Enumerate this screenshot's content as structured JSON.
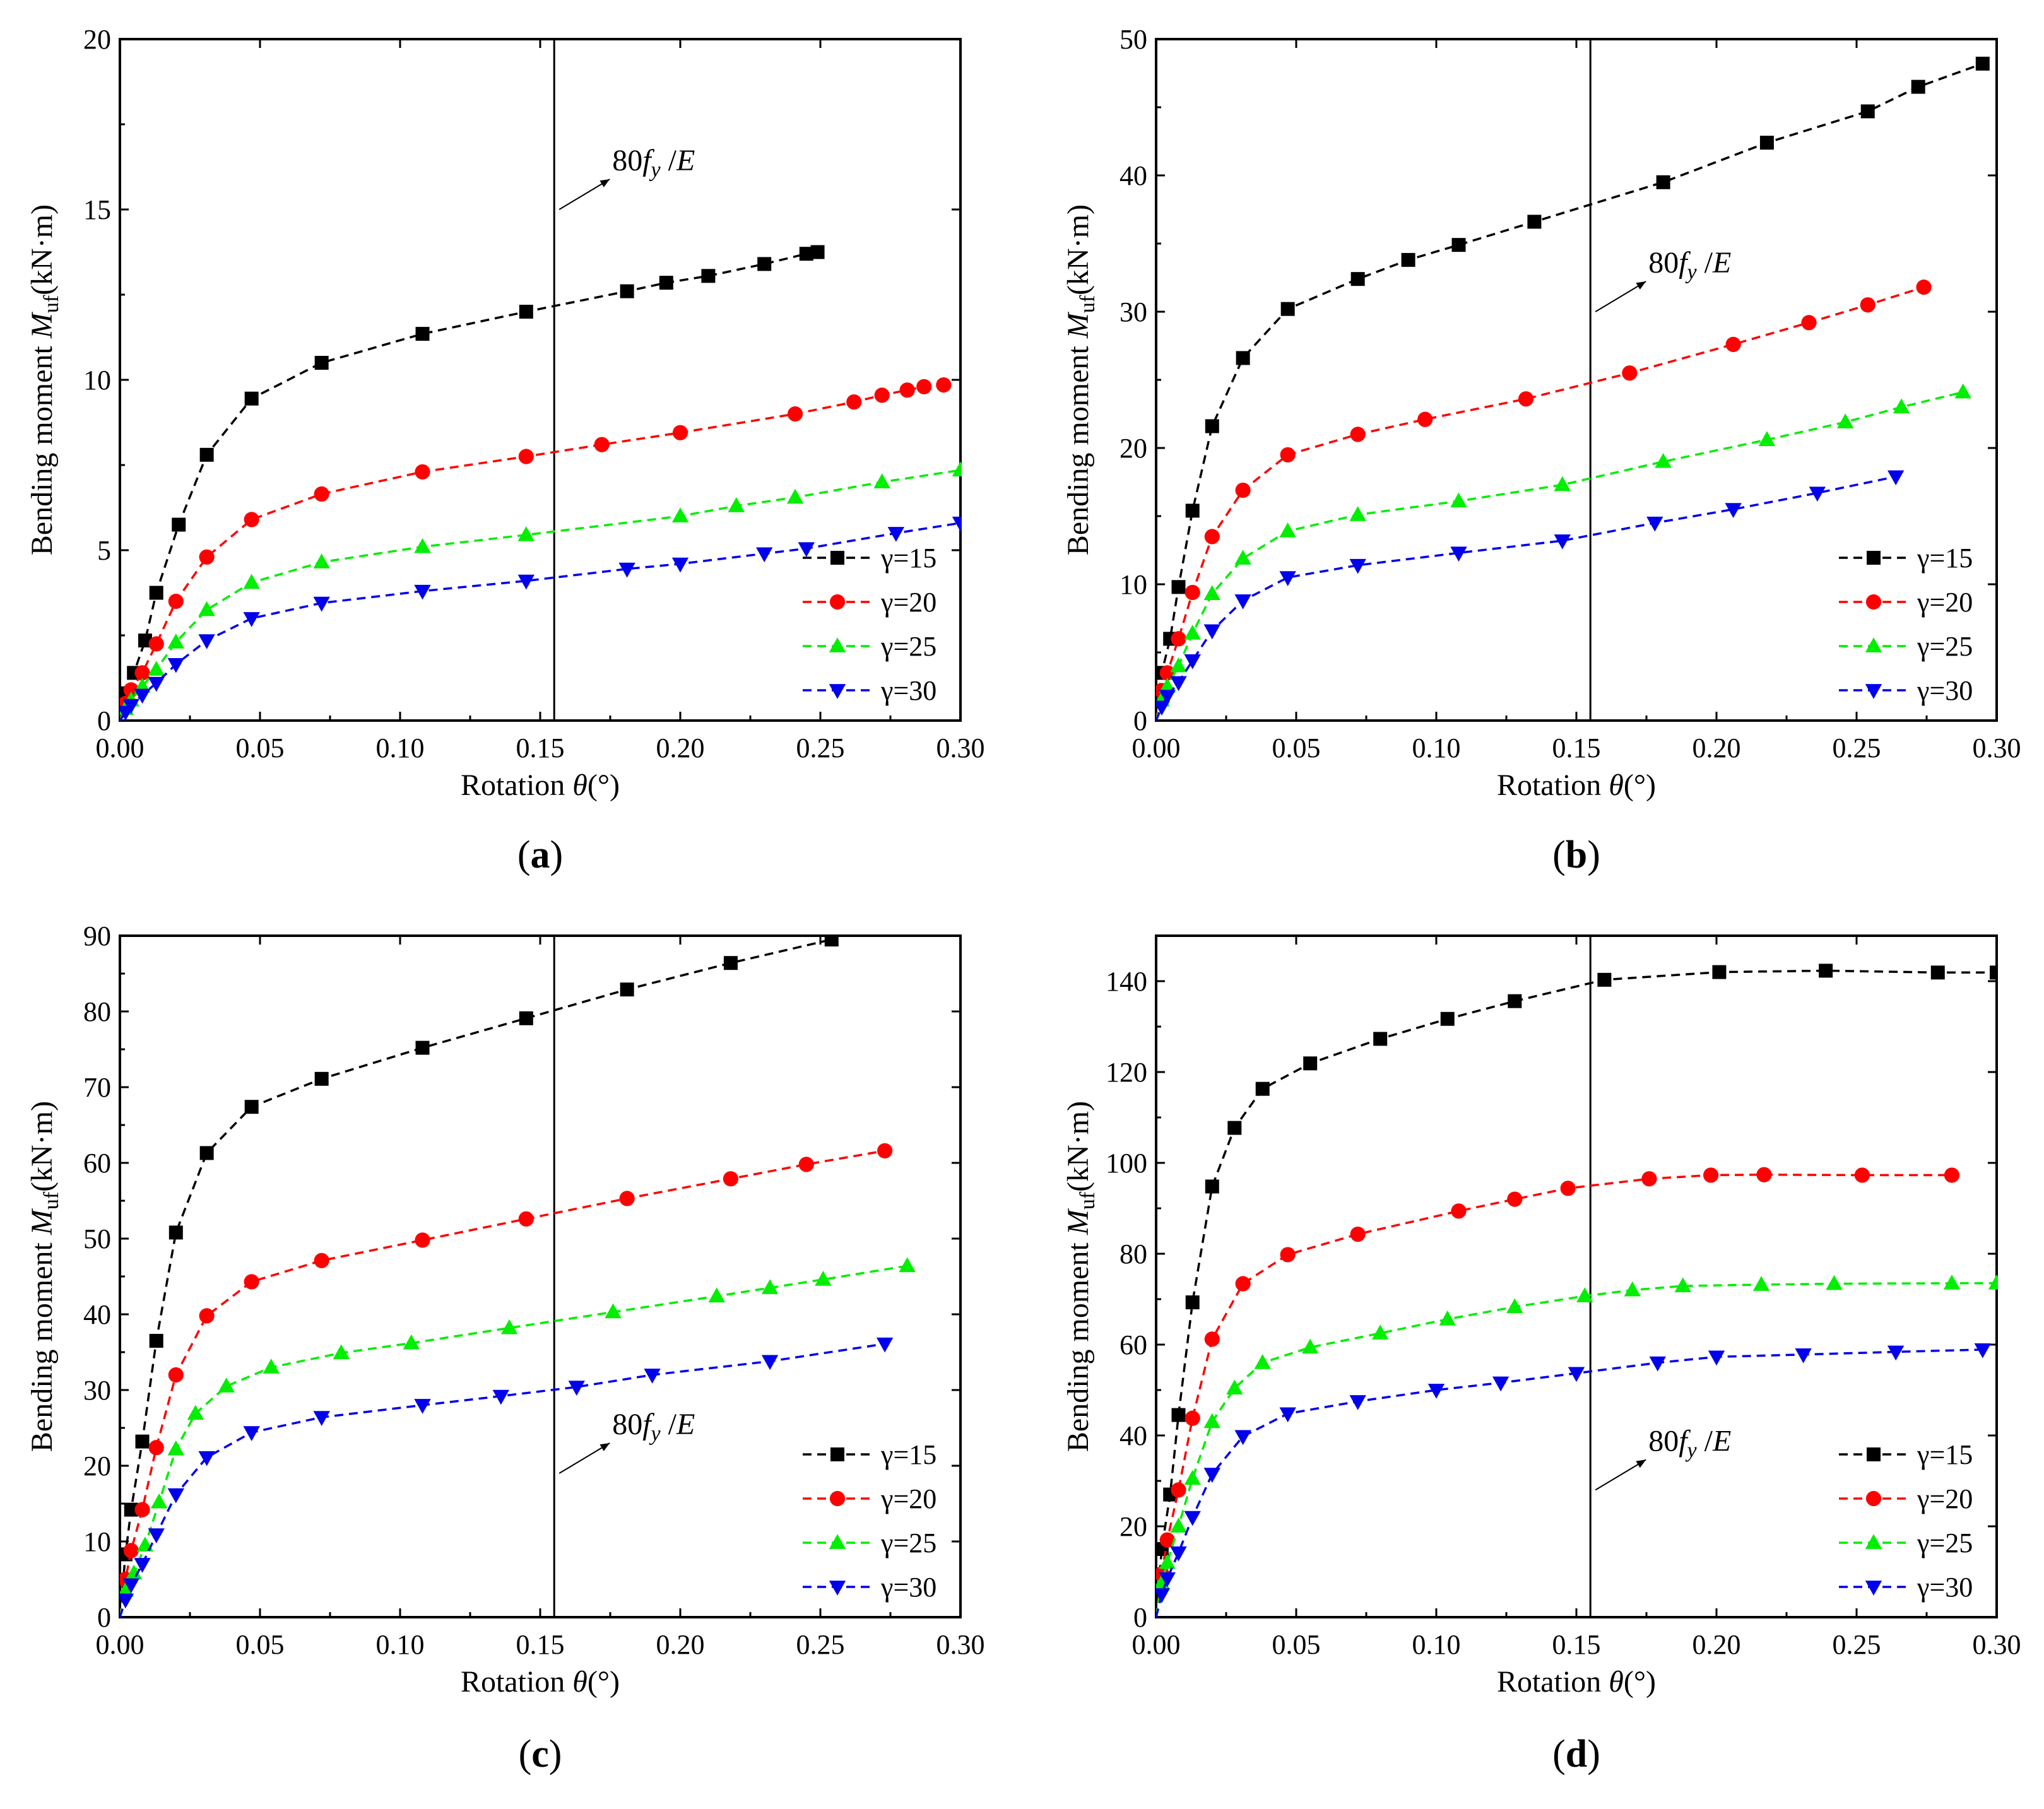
{
  "figure": {
    "panels": [
      {
        "label": "a",
        "ylim": [
          0,
          20
        ],
        "yticks": [
          0,
          5,
          10,
          15,
          20
        ],
        "ref_x": 0.155,
        "annotation_y": 15,
        "legend": [
          "γ=15",
          "γ=20",
          "γ=25",
          "γ=30"
        ]
      },
      {
        "label": "b",
        "ylim": [
          0,
          50
        ],
        "yticks": [
          0,
          10,
          20,
          30,
          40,
          50
        ],
        "ref_x": 0.155,
        "annotation_y": 30,
        "legend": [
          "γ=15",
          "γ=20",
          "γ=25",
          "γ=30"
        ]
      },
      {
        "label": "c",
        "ylim": [
          0,
          90
        ],
        "yticks": [
          0,
          10,
          20,
          30,
          40,
          50,
          60,
          70,
          80,
          90
        ],
        "ref_x": 0.155,
        "annotation_y": 19,
        "legend": [
          "γ=15",
          "γ=20",
          "γ=25",
          "γ=30"
        ]
      },
      {
        "label": "d",
        "ylim": [
          0,
          150
        ],
        "yticks": [
          0,
          20,
          40,
          60,
          80,
          100,
          120,
          140
        ],
        "ref_x": 0.155,
        "annotation_y": 28,
        "legend": [
          "γ=15",
          "γ=20",
          "γ=25",
          "γ=30"
        ]
      }
    ],
    "xticks": [
      "0.00",
      "0.05",
      "0.10",
      "0.15",
      "0.20",
      "0.25",
      "0.30"
    ],
    "xlabel": {
      "prefix": "Rotation ",
      "symbol": "θ",
      "suffix": "(°)"
    },
    "ylabel": {
      "prefix": "Bending moment ",
      "symbol": "M",
      "sub": "uf",
      "suffix": "(kN·m)"
    },
    "annotation": {
      "prefix": "80",
      "symbol": "f",
      "sub": "y",
      "sep": " /",
      "denom": "E"
    },
    "series_colors": [
      "#000000",
      "#ff0000",
      "#00ee00",
      "#0000ee"
    ],
    "markers": [
      "square",
      "circle",
      "triangle-up",
      "triangle-down"
    ]
  },
  "chart_data": [
    {
      "type": "line",
      "title": "(a)",
      "xlabel": "Rotation θ(°)",
      "ylabel": "Bending moment Muf(kN·m)",
      "xlim": [
        0,
        0.3
      ],
      "ylim": [
        0,
        20
      ],
      "reference_line_x": 0.155,
      "reference_label": "80fy /E",
      "series": [
        {
          "name": "γ=15",
          "x": [
            0,
            0.002,
            0.005,
            0.009,
            0.013,
            0.021,
            0.031,
            0.047,
            0.072,
            0.108,
            0.145,
            0.181,
            0.195,
            0.21,
            0.23,
            0.245,
            0.249
          ],
          "y": [
            0,
            0.8,
            1.4,
            2.35,
            3.75,
            5.75,
            7.8,
            9.45,
            10.5,
            11.35,
            12.0,
            12.6,
            12.85,
            13.05,
            13.4,
            13.7,
            13.75
          ]
        },
        {
          "name": "γ=20",
          "x": [
            0,
            0.002,
            0.004,
            0.008,
            0.013,
            0.02,
            0.031,
            0.047,
            0.072,
            0.108,
            0.145,
            0.172,
            0.2,
            0.241,
            0.262,
            0.272,
            0.281,
            0.287,
            0.294
          ],
          "y": [
            0,
            0.5,
            0.9,
            1.4,
            2.25,
            3.5,
            4.8,
            5.9,
            6.65,
            7.3,
            7.75,
            8.1,
            8.45,
            9.0,
            9.35,
            9.55,
            9.7,
            9.8,
            9.85
          ]
        },
        {
          "name": "γ=25",
          "x": [
            0,
            0.002,
            0.004,
            0.008,
            0.013,
            0.02,
            0.031,
            0.047,
            0.072,
            0.108,
            0.145,
            0.2,
            0.22,
            0.241,
            0.272,
            0.3
          ],
          "y": [
            0,
            0.35,
            0.6,
            1.0,
            1.5,
            2.3,
            3.25,
            4.05,
            4.65,
            5.1,
            5.45,
            6.0,
            6.3,
            6.55,
            7.0,
            7.35
          ]
        },
        {
          "name": "γ=30",
          "x": [
            0,
            0.002,
            0.004,
            0.008,
            0.013,
            0.02,
            0.031,
            0.047,
            0.072,
            0.108,
            0.145,
            0.181,
            0.2,
            0.23,
            0.245,
            0.277,
            0.3
          ],
          "y": [
            0,
            0.25,
            0.45,
            0.75,
            1.1,
            1.65,
            2.35,
            3.0,
            3.45,
            3.8,
            4.1,
            4.45,
            4.6,
            4.9,
            5.05,
            5.5,
            5.8
          ]
        }
      ]
    },
    {
      "type": "line",
      "title": "(b)",
      "xlabel": "Rotation θ(°)",
      "ylabel": "Bending moment Muf(kN·m)",
      "xlim": [
        0,
        0.3
      ],
      "ylim": [
        0,
        50
      ],
      "reference_line_x": 0.155,
      "reference_label": "80fy /E",
      "series": [
        {
          "name": "γ=15",
          "x": [
            0,
            0.002,
            0.005,
            0.008,
            0.013,
            0.02,
            0.031,
            0.047,
            0.072,
            0.09,
            0.108,
            0.135,
            0.181,
            0.218,
            0.254,
            0.272,
            0.295
          ],
          "y": [
            0,
            3.5,
            6.0,
            9.8,
            15.4,
            21.6,
            26.6,
            30.2,
            32.4,
            33.8,
            34.9,
            36.6,
            39.5,
            42.4,
            44.7,
            46.5,
            48.2
          ]
        },
        {
          "name": "γ=20",
          "x": [
            0,
            0.002,
            0.004,
            0.008,
            0.013,
            0.02,
            0.031,
            0.047,
            0.072,
            0.096,
            0.132,
            0.169,
            0.206,
            0.233,
            0.254,
            0.274
          ],
          "y": [
            0,
            2.2,
            3.5,
            6.0,
            9.4,
            13.5,
            16.9,
            19.5,
            21.0,
            22.1,
            23.6,
            25.5,
            27.6,
            29.2,
            30.5,
            31.8
          ]
        },
        {
          "name": "γ=25",
          "x": [
            0,
            0.002,
            0.004,
            0.008,
            0.013,
            0.02,
            0.031,
            0.047,
            0.072,
            0.108,
            0.145,
            0.181,
            0.218,
            0.246,
            0.266,
            0.288
          ],
          "y": [
            0,
            1.5,
            2.5,
            4.0,
            6.4,
            9.3,
            11.9,
            13.9,
            15.1,
            16.1,
            17.3,
            19.0,
            20.6,
            21.9,
            23.0,
            24.1
          ]
        },
        {
          "name": "γ=30",
          "x": [
            0,
            0.002,
            0.004,
            0.008,
            0.013,
            0.02,
            0.031,
            0.047,
            0.072,
            0.108,
            0.145,
            0.178,
            0.206,
            0.236,
            0.264
          ],
          "y": [
            0,
            1.0,
            1.8,
            2.8,
            4.4,
            6.6,
            8.8,
            10.5,
            11.4,
            12.3,
            13.2,
            14.5,
            15.5,
            16.7,
            17.9
          ]
        }
      ]
    },
    {
      "type": "line",
      "title": "(c)",
      "xlabel": "Rotation θ(°)",
      "ylabel": "Bending moment Muf(kN·m)",
      "xlim": [
        0,
        0.3
      ],
      "ylim": [
        0,
        90
      ],
      "reference_line_x": 0.155,
      "reference_label": "80fy /E",
      "series": [
        {
          "name": "γ=15",
          "x": [
            0,
            0.002,
            0.004,
            0.008,
            0.013,
            0.02,
            0.031,
            0.047,
            0.072,
            0.108,
            0.145,
            0.181,
            0.218,
            0.254
          ],
          "y": [
            0,
            8.3,
            14.2,
            23.2,
            36.5,
            50.8,
            61.3,
            67.4,
            71.1,
            75.2,
            79.1,
            82.9,
            86.4,
            89.5
          ]
        },
        {
          "name": "γ=20",
          "x": [
            0,
            0.002,
            0.004,
            0.008,
            0.013,
            0.02,
            0.031,
            0.047,
            0.072,
            0.108,
            0.145,
            0.181,
            0.218,
            0.245,
            0.273
          ],
          "y": [
            0,
            5.0,
            8.8,
            14.2,
            22.4,
            32.0,
            39.8,
            44.3,
            47.1,
            49.8,
            52.6,
            55.3,
            57.9,
            59.8,
            61.6
          ]
        },
        {
          "name": "γ=25",
          "x": [
            0,
            0.002,
            0.005,
            0.009,
            0.014,
            0.02,
            0.027,
            0.038,
            0.054,
            0.079,
            0.104,
            0.139,
            0.176,
            0.213,
            0.232,
            0.251,
            0.281
          ],
          "y": [
            0,
            3.5,
            5.8,
            9.5,
            15.2,
            22.2,
            26.9,
            30.5,
            33.0,
            34.9,
            36.2,
            38.2,
            40.3,
            42.4,
            43.5,
            44.6,
            46.4
          ]
        },
        {
          "name": "γ=30",
          "x": [
            0,
            0.002,
            0.004,
            0.008,
            0.013,
            0.02,
            0.031,
            0.047,
            0.072,
            0.108,
            0.136,
            0.163,
            0.19,
            0.232,
            0.273
          ],
          "y": [
            0,
            2.3,
            4.3,
            7.0,
            10.9,
            16.2,
            21.1,
            24.4,
            26.4,
            28.0,
            29.2,
            30.4,
            32.0,
            33.8,
            36.1
          ]
        }
      ]
    },
    {
      "type": "line",
      "title": "(d)",
      "xlabel": "Rotation θ(°)",
      "ylabel": "Bending moment Muf(kN·m)",
      "xlim": [
        0,
        0.3
      ],
      "ylim": [
        0,
        150
      ],
      "reference_line_x": 0.155,
      "reference_label": "80fy /E",
      "series": [
        {
          "name": "γ=15",
          "x": [
            0,
            0.002,
            0.005,
            0.008,
            0.013,
            0.02,
            0.028,
            0.038,
            0.055,
            0.08,
            0.104,
            0.128,
            0.16,
            0.201,
            0.239,
            0.279,
            0.3
          ],
          "y": [
            0,
            15.0,
            27.0,
            44.5,
            69.3,
            94.8,
            107.7,
            116.3,
            121.9,
            127.3,
            131.7,
            135.6,
            140.3,
            142.0,
            142.3,
            141.9,
            141.9
          ]
        },
        {
          "name": "γ=20",
          "x": [
            0,
            0.002,
            0.004,
            0.008,
            0.013,
            0.02,
            0.031,
            0.047,
            0.072,
            0.108,
            0.128,
            0.147,
            0.176,
            0.198,
            0.217,
            0.252,
            0.284
          ],
          "y": [
            0,
            9.5,
            17.0,
            28.0,
            43.8,
            61.2,
            73.4,
            79.8,
            84.3,
            89.4,
            92.0,
            94.4,
            96.5,
            97.3,
            97.4,
            97.3,
            97.3
          ]
        },
        {
          "name": "γ=25",
          "x": [
            0,
            0.002,
            0.004,
            0.008,
            0.013,
            0.02,
            0.028,
            0.038,
            0.055,
            0.08,
            0.104,
            0.128,
            0.153,
            0.17,
            0.188,
            0.216,
            0.242,
            0.284,
            0.3
          ],
          "y": [
            0,
            7.5,
            12.0,
            20.0,
            30.5,
            43.0,
            50.4,
            56.0,
            59.4,
            62.5,
            65.6,
            68.3,
            70.7,
            72.0,
            72.9,
            73.2,
            73.4,
            73.5,
            73.5
          ]
        },
        {
          "name": "γ=30",
          "x": [
            0,
            0.002,
            0.004,
            0.008,
            0.013,
            0.02,
            0.031,
            0.047,
            0.072,
            0.1,
            0.123,
            0.15,
            0.179,
            0.2,
            0.231,
            0.264,
            0.295
          ],
          "y": [
            0,
            5.0,
            8.5,
            14.2,
            22.0,
            31.5,
            39.8,
            44.8,
            47.5,
            50.0,
            51.6,
            53.7,
            56.0,
            57.3,
            57.8,
            58.4,
            58.9
          ]
        }
      ]
    }
  ]
}
